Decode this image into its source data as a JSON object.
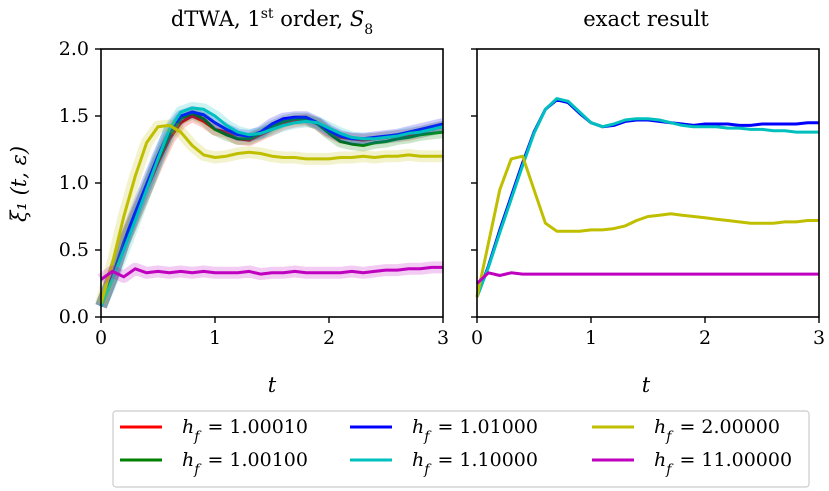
{
  "chart_data": [
    {
      "type": "line",
      "title_main": "dTWA, 1",
      "title_sup": "st",
      "title_rest": " order, ",
      "title_s": "S",
      "title_sub": "8",
      "xlabel": "t",
      "ylabel": "ξ₁ (t, ε)",
      "xlim": [
        0,
        3
      ],
      "ylim": [
        0,
        2
      ],
      "xticks": [
        "0",
        "1",
        "2",
        "3"
      ],
      "yticks": [
        "0.0",
        "0.5",
        "1.0",
        "1.5",
        "2.0"
      ],
      "series": [
        {
          "name": "h_f = 1.00010",
          "color": "#ff0000",
          "x": [
            0,
            0.1,
            0.2,
            0.3,
            0.4,
            0.5,
            0.6,
            0.7,
            0.8,
            0.9,
            1.0,
            1.1,
            1.2,
            1.3,
            1.4,
            1.5,
            1.6,
            1.7,
            1.8,
            1.9,
            2.0,
            2.1,
            2.2,
            2.3,
            2.4,
            2.5,
            2.6,
            2.7,
            2.8,
            2.9,
            3.0
          ],
          "y": [
            0.08,
            0.3,
            0.55,
            0.75,
            0.95,
            1.15,
            1.33,
            1.45,
            1.5,
            1.46,
            1.4,
            1.38,
            1.33,
            1.32,
            1.36,
            1.4,
            1.44,
            1.46,
            1.47,
            1.44,
            1.38,
            1.34,
            1.33,
            1.32,
            1.33,
            1.34,
            1.35,
            1.36,
            1.38,
            1.4,
            1.42
          ]
        },
        {
          "name": "h_f = 1.00100",
          "color": "#008000",
          "x": [
            0,
            0.1,
            0.2,
            0.3,
            0.4,
            0.5,
            0.6,
            0.7,
            0.8,
            0.9,
            1.0,
            1.1,
            1.2,
            1.3,
            1.4,
            1.5,
            1.6,
            1.7,
            1.8,
            1.9,
            2.0,
            2.1,
            2.2,
            2.3,
            2.4,
            2.5,
            2.6,
            2.7,
            2.8,
            2.9,
            3.0
          ],
          "y": [
            0.08,
            0.3,
            0.55,
            0.76,
            0.96,
            1.17,
            1.36,
            1.48,
            1.52,
            1.48,
            1.4,
            1.36,
            1.33,
            1.33,
            1.37,
            1.42,
            1.46,
            1.48,
            1.48,
            1.44,
            1.37,
            1.31,
            1.29,
            1.28,
            1.3,
            1.31,
            1.33,
            1.34,
            1.36,
            1.37,
            1.38
          ]
        },
        {
          "name": "h_f = 1.01000",
          "color": "#0000ff",
          "x": [
            0,
            0.1,
            0.2,
            0.3,
            0.4,
            0.5,
            0.6,
            0.7,
            0.8,
            0.9,
            1.0,
            1.1,
            1.2,
            1.3,
            1.4,
            1.5,
            1.6,
            1.7,
            1.8,
            1.9,
            2.0,
            2.1,
            2.2,
            2.3,
            2.4,
            2.5,
            2.6,
            2.7,
            2.8,
            2.9,
            3.0
          ],
          "y": [
            0.08,
            0.3,
            0.56,
            0.78,
            0.99,
            1.2,
            1.39,
            1.5,
            1.53,
            1.51,
            1.45,
            1.4,
            1.36,
            1.35,
            1.38,
            1.44,
            1.48,
            1.49,
            1.49,
            1.45,
            1.39,
            1.35,
            1.33,
            1.33,
            1.34,
            1.35,
            1.36,
            1.38,
            1.4,
            1.42,
            1.44
          ]
        },
        {
          "name": "h_f = 1.10000",
          "color": "#00bfbf",
          "x": [
            0,
            0.1,
            0.2,
            0.3,
            0.4,
            0.5,
            0.6,
            0.7,
            0.8,
            0.9,
            1.0,
            1.1,
            1.2,
            1.3,
            1.4,
            1.5,
            1.6,
            1.7,
            1.8,
            1.9,
            2.0,
            2.1,
            2.2,
            2.3,
            2.4,
            2.5,
            2.6,
            2.7,
            2.8,
            2.9,
            3.0
          ],
          "y": [
            0.08,
            0.28,
            0.5,
            0.72,
            0.95,
            1.18,
            1.4,
            1.53,
            1.56,
            1.55,
            1.5,
            1.43,
            1.38,
            1.36,
            1.37,
            1.4,
            1.43,
            1.45,
            1.46,
            1.45,
            1.41,
            1.37,
            1.34,
            1.33,
            1.33,
            1.34,
            1.35,
            1.37,
            1.38,
            1.4,
            1.42
          ]
        },
        {
          "name": "h_f = 2.00000",
          "color": "#bfbf00",
          "x": [
            0,
            0.1,
            0.2,
            0.3,
            0.4,
            0.5,
            0.6,
            0.7,
            0.8,
            0.9,
            1.0,
            1.1,
            1.2,
            1.3,
            1.4,
            1.5,
            1.6,
            1.7,
            1.8,
            1.9,
            2.0,
            2.1,
            2.2,
            2.3,
            2.4,
            2.5,
            2.6,
            2.7,
            2.8,
            2.9,
            3.0
          ],
          "y": [
            0.1,
            0.4,
            0.75,
            1.05,
            1.3,
            1.42,
            1.43,
            1.38,
            1.28,
            1.21,
            1.19,
            1.2,
            1.22,
            1.23,
            1.22,
            1.2,
            1.19,
            1.19,
            1.18,
            1.18,
            1.18,
            1.19,
            1.19,
            1.2,
            1.19,
            1.2,
            1.2,
            1.21,
            1.2,
            1.2,
            1.2
          ]
        },
        {
          "name": "h_f = 11.00000",
          "color": "#bf00bf",
          "x": [
            0,
            0.1,
            0.2,
            0.3,
            0.4,
            0.5,
            0.6,
            0.7,
            0.8,
            0.9,
            1.0,
            1.1,
            1.2,
            1.3,
            1.4,
            1.5,
            1.6,
            1.7,
            1.8,
            1.9,
            2.0,
            2.1,
            2.2,
            2.3,
            2.4,
            2.5,
            2.6,
            2.7,
            2.8,
            2.9,
            3.0
          ],
          "y": [
            0.28,
            0.34,
            0.3,
            0.36,
            0.33,
            0.34,
            0.33,
            0.34,
            0.33,
            0.34,
            0.33,
            0.33,
            0.33,
            0.34,
            0.32,
            0.33,
            0.33,
            0.34,
            0.33,
            0.33,
            0.33,
            0.33,
            0.34,
            0.33,
            0.34,
            0.35,
            0.35,
            0.36,
            0.36,
            0.37,
            0.37
          ]
        }
      ]
    },
    {
      "type": "line",
      "title": "exact result",
      "xlabel": "t",
      "xlim": [
        0,
        3
      ],
      "ylim": [
        0,
        2
      ],
      "xticks": [
        "0",
        "1",
        "2",
        "3"
      ],
      "series": [
        {
          "name": "h_f = 1.01000",
          "color": "#0000ff",
          "x": [
            0,
            0.1,
            0.2,
            0.3,
            0.4,
            0.5,
            0.6,
            0.7,
            0.8,
            0.9,
            1.0,
            1.1,
            1.2,
            1.3,
            1.4,
            1.5,
            1.6,
            1.7,
            1.8,
            1.9,
            2.0,
            2.1,
            2.2,
            2.3,
            2.4,
            2.5,
            2.6,
            2.7,
            2.8,
            2.9,
            3.0
          ],
          "y": [
            0.15,
            0.38,
            0.65,
            0.9,
            1.15,
            1.38,
            1.55,
            1.62,
            1.6,
            1.52,
            1.45,
            1.42,
            1.43,
            1.46,
            1.47,
            1.47,
            1.46,
            1.45,
            1.44,
            1.43,
            1.44,
            1.44,
            1.44,
            1.43,
            1.43,
            1.44,
            1.44,
            1.44,
            1.44,
            1.45,
            1.45
          ]
        },
        {
          "name": "h_f = 1.10000",
          "color": "#00bfbf",
          "x": [
            0,
            0.1,
            0.2,
            0.3,
            0.4,
            0.5,
            0.6,
            0.7,
            0.8,
            0.9,
            1.0,
            1.1,
            1.2,
            1.3,
            1.4,
            1.5,
            1.6,
            1.7,
            1.8,
            1.9,
            2.0,
            2.1,
            2.2,
            2.3,
            2.4,
            2.5,
            2.6,
            2.7,
            2.8,
            2.9,
            3.0
          ],
          "y": [
            0.15,
            0.37,
            0.63,
            0.88,
            1.13,
            1.37,
            1.55,
            1.63,
            1.61,
            1.53,
            1.45,
            1.42,
            1.44,
            1.47,
            1.48,
            1.48,
            1.47,
            1.45,
            1.43,
            1.42,
            1.42,
            1.42,
            1.41,
            1.41,
            1.4,
            1.4,
            1.39,
            1.39,
            1.38,
            1.38,
            1.38
          ]
        },
        {
          "name": "h_f = 2.00000",
          "color": "#bfbf00",
          "x": [
            0,
            0.1,
            0.2,
            0.3,
            0.4,
            0.5,
            0.6,
            0.7,
            0.8,
            0.9,
            1.0,
            1.1,
            1.2,
            1.3,
            1.4,
            1.5,
            1.6,
            1.7,
            1.8,
            1.9,
            2.0,
            2.1,
            2.2,
            2.3,
            2.4,
            2.5,
            2.6,
            2.7,
            2.8,
            2.9,
            3.0
          ],
          "y": [
            0.15,
            0.55,
            0.95,
            1.18,
            1.2,
            0.95,
            0.7,
            0.64,
            0.64,
            0.64,
            0.65,
            0.65,
            0.66,
            0.68,
            0.72,
            0.75,
            0.76,
            0.77,
            0.76,
            0.75,
            0.74,
            0.73,
            0.72,
            0.71,
            0.7,
            0.7,
            0.7,
            0.71,
            0.71,
            0.72,
            0.72
          ]
        },
        {
          "name": "h_f = 11.00000",
          "color": "#bf00bf",
          "x": [
            0,
            0.1,
            0.2,
            0.3,
            0.4,
            0.5,
            0.6,
            0.7,
            0.8,
            0.9,
            1.0,
            1.1,
            1.2,
            1.3,
            1.4,
            1.5,
            1.6,
            1.7,
            1.8,
            1.9,
            2.0,
            2.1,
            2.2,
            2.3,
            2.4,
            2.5,
            2.6,
            2.7,
            2.8,
            2.9,
            3.0
          ],
          "y": [
            0.25,
            0.33,
            0.31,
            0.33,
            0.32,
            0.32,
            0.32,
            0.32,
            0.32,
            0.32,
            0.32,
            0.32,
            0.32,
            0.32,
            0.32,
            0.32,
            0.32,
            0.32,
            0.32,
            0.32,
            0.32,
            0.32,
            0.32,
            0.32,
            0.32,
            0.32,
            0.32,
            0.32,
            0.32,
            0.32,
            0.32
          ]
        }
      ]
    }
  ],
  "legend": [
    {
      "label": "= 1.00010",
      "color": "#ff0000"
    },
    {
      "label": "= 1.01000",
      "color": "#0000ff"
    },
    {
      "label": "= 2.00000",
      "color": "#bfbf00"
    },
    {
      "label": "= 1.00100",
      "color": "#008000"
    },
    {
      "label": "= 1.10000",
      "color": "#00bfbf"
    },
    {
      "label": "= 11.00000",
      "color": "#bf00bf"
    }
  ],
  "legend_prefix_h": "h",
  "legend_prefix_sub": "f"
}
